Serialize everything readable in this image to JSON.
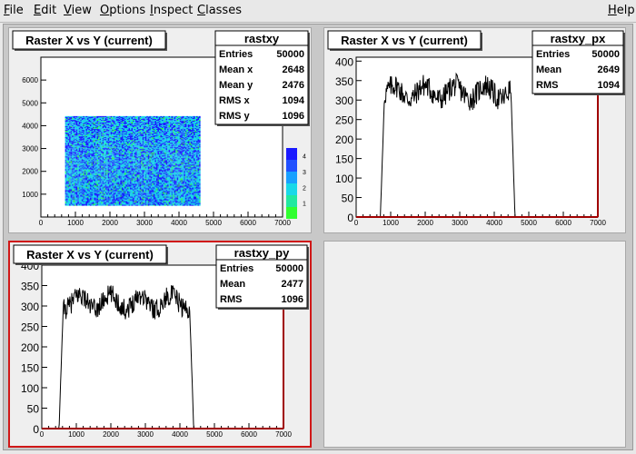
{
  "menu": {
    "items": [
      {
        "label": "File",
        "u": "F",
        "rest": "ile"
      },
      {
        "label": "Edit",
        "u": "E",
        "rest": "dit"
      },
      {
        "label": "View",
        "u": "V",
        "rest": "iew"
      },
      {
        "label": "Options",
        "u": "O",
        "rest": "ptions"
      },
      {
        "label": "Inspect",
        "u": "I",
        "rest": "nspect"
      },
      {
        "label": "Classes",
        "u": "C",
        "rest": "lasses"
      }
    ],
    "help": {
      "label": "Help",
      "u": "H",
      "rest": "elp"
    }
  },
  "pads": [
    {
      "title": "Raster X vs Y (current)",
      "stats_name": "rastxy",
      "stats_rows": [
        {
          "label": "Entries",
          "value": "50000"
        },
        {
          "label": "Mean x",
          "value": "2648"
        },
        {
          "label": "Mean y",
          "value": "2476"
        },
        {
          "label": "RMS x",
          "value": "1094"
        },
        {
          "label": "RMS y",
          "value": "1096"
        }
      ],
      "active": false
    },
    {
      "title": "Raster X vs Y (current)",
      "stats_name": "rastxy_px",
      "stats_rows": [
        {
          "label": "Entries",
          "value": "50000"
        },
        {
          "label": "Mean",
          "value": "2649"
        },
        {
          "label": "RMS",
          "value": "1094"
        }
      ],
      "active": false
    },
    {
      "title": "Raster X vs Y (current)",
      "stats_name": "rastxy_py",
      "stats_rows": [
        {
          "label": "Entries",
          "value": "50000"
        },
        {
          "label": "Mean",
          "value": "2477"
        },
        {
          "label": "RMS",
          "value": "1096"
        }
      ],
      "active": true
    },
    {
      "empty": true
    }
  ],
  "chart_data": [
    {
      "type": "heatmap",
      "name": "rastxy",
      "title": "Raster X vs Y (current)",
      "x_range": [
        0,
        7000
      ],
      "y_range": [
        0,
        7000
      ],
      "x_ticks": [
        0,
        1000,
        2000,
        3000,
        4000,
        5000,
        6000,
        7000
      ],
      "y_ticks": [
        1000,
        2000,
        3000,
        4000,
        5000,
        6000
      ],
      "filled_region": {
        "x": [
          700,
          4600
        ],
        "y": [
          500,
          4400
        ]
      },
      "palette_ticks": [
        1,
        2,
        3,
        4
      ],
      "colors": {
        "low": "#1a1aff",
        "mid": "#18d8e8",
        "high": "#30ff30"
      }
    },
    {
      "type": "line",
      "name": "rastxy_px",
      "title": "Raster X vs Y (current)",
      "x_range": [
        0,
        7000
      ],
      "y_range": [
        0,
        410
      ],
      "x_ticks": [
        0,
        1000,
        2000,
        3000,
        4000,
        5000,
        6000,
        7000
      ],
      "y_ticks": [
        0,
        50,
        100,
        150,
        200,
        250,
        300,
        350,
        400
      ],
      "plateau": {
        "x": [
          700,
          4600
        ],
        "level": 320,
        "spread": 60
      },
      "frame_color": "#a00000"
    },
    {
      "type": "line",
      "name": "rastxy_py",
      "title": "Raster X vs Y (current)",
      "x_range": [
        0,
        7000
      ],
      "y_range": [
        0,
        400
      ],
      "x_ticks": [
        0,
        1000,
        2000,
        3000,
        4000,
        5000,
        6000,
        7000
      ],
      "y_ticks": [
        0,
        50,
        100,
        150,
        200,
        250,
        300,
        350,
        400
      ],
      "plateau": {
        "x": [
          500,
          4400
        ],
        "level": 310,
        "spread": 50
      },
      "frame_color": "#a00000"
    }
  ]
}
